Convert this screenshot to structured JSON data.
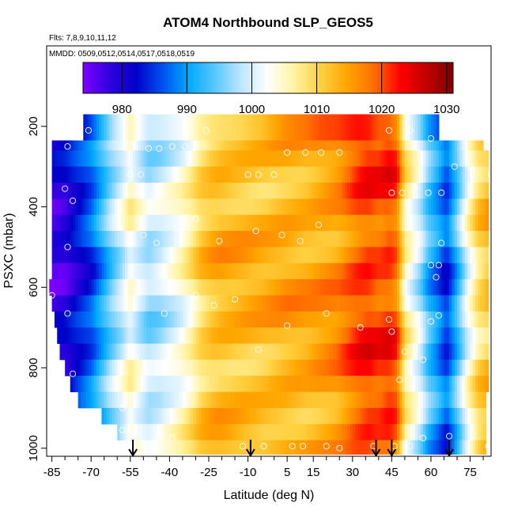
{
  "chart_data": {
    "type": "heatmap",
    "title": "ATOM4 Northbound SLP_GEOS5",
    "subtitle_flights": "Flts: 7,8,9,10,11,12",
    "subtitle_dates": "MMDD: 0509,0512,0514,0517,0518,0519",
    "xlabel": "Latitude (deg N)",
    "ylabel": "PSXC (mbar)",
    "xlim": [
      -87,
      83
    ],
    "ylim": [
      1020,
      0
    ],
    "y_reversed": true,
    "x_ticks": [
      -85,
      -70,
      -55,
      -40,
      -25,
      -10,
      5,
      15,
      30,
      45,
      60,
      75
    ],
    "x_tick_labels": [
      "-85",
      "-70",
      "-55",
      "-40",
      "-25",
      "-10",
      "5",
      "15",
      "30",
      "45",
      "60",
      "75"
    ],
    "y_ticks": [
      200,
      400,
      600,
      800,
      1000
    ],
    "y_tick_labels": [
      "200",
      "400",
      "600",
      "800",
      "1000"
    ],
    "colorbar": {
      "min": 974,
      "max": 1031,
      "ticks": [
        980,
        990,
        1000,
        1010,
        1020,
        1030
      ],
      "tick_labels": [
        "980",
        "990",
        "1000",
        "1010",
        "1020",
        "1030"
      ],
      "colors": [
        "#7f00ff",
        "#3000e0",
        "#0000c8",
        "#0050f0",
        "#00aaff",
        "#5ac8ff",
        "#bfe6ff",
        "#ffffff",
        "#fff3a0",
        "#ffd040",
        "#ffa500",
        "#ff7000",
        "#ff0000",
        "#c00000",
        "#800000"
      ]
    },
    "pressure_bands": [
      {
        "p_top": 170,
        "p_bot": 235,
        "lat_min": -73,
        "lat_max": 63
      },
      {
        "p_top": 235,
        "p_bot": 260,
        "lat_min": -85,
        "lat_max": 80
      },
      {
        "p_top": 260,
        "p_bot": 300,
        "lat_min": -85,
        "lat_max": 82
      },
      {
        "p_top": 300,
        "p_bot": 340,
        "lat_min": -85,
        "lat_max": 82
      },
      {
        "p_top": 340,
        "p_bot": 380,
        "lat_min": -85,
        "lat_max": 82
      },
      {
        "p_top": 380,
        "p_bot": 420,
        "lat_min": -85,
        "lat_max": 82
      },
      {
        "p_top": 420,
        "p_bot": 460,
        "lat_min": -85,
        "lat_max": 82
      },
      {
        "p_top": 460,
        "p_bot": 500,
        "lat_min": -85,
        "lat_max": 82
      },
      {
        "p_top": 500,
        "p_bot": 540,
        "lat_min": -85,
        "lat_max": 82
      },
      {
        "p_top": 540,
        "p_bot": 580,
        "lat_min": -85,
        "lat_max": 82
      },
      {
        "p_top": 580,
        "p_bot": 620,
        "lat_min": -86,
        "lat_max": 82
      },
      {
        "p_top": 620,
        "p_bot": 660,
        "lat_min": -85,
        "lat_max": 82
      },
      {
        "p_top": 660,
        "p_bot": 700,
        "lat_min": -84,
        "lat_max": 82
      },
      {
        "p_top": 700,
        "p_bot": 740,
        "lat_min": -83,
        "lat_max": 82
      },
      {
        "p_top": 740,
        "p_bot": 780,
        "lat_min": -82,
        "lat_max": 82
      },
      {
        "p_top": 780,
        "p_bot": 820,
        "lat_min": -80,
        "lat_max": 82
      },
      {
        "p_top": 820,
        "p_bot": 860,
        "lat_min": -78,
        "lat_max": 82
      },
      {
        "p_top": 860,
        "p_bot": 900,
        "lat_min": -75,
        "lat_max": 81
      },
      {
        "p_top": 900,
        "p_bot": 940,
        "lat_min": -66,
        "lat_max": 81
      },
      {
        "p_top": 940,
        "p_bot": 980,
        "lat_min": -60,
        "lat_max": 81
      },
      {
        "p_top": 980,
        "p_bot": 1015,
        "lat_min": -53,
        "lat_max": 81
      }
    ],
    "slp_profile_lat": [
      -87,
      -80,
      -76,
      -70,
      -66,
      -62,
      -58,
      -55,
      -52,
      -48,
      -44,
      -40,
      -36,
      -32,
      -28,
      -24,
      -20,
      -12,
      -4,
      4,
      12,
      18,
      24,
      28,
      32,
      36,
      40,
      44,
      47,
      50,
      53,
      56,
      59,
      62,
      66,
      70,
      74,
      78,
      82
    ],
    "slp_profile_value": [
      978,
      979,
      982,
      986,
      991,
      996,
      1000,
      1004,
      1001,
      998,
      999,
      1001,
      1003,
      1006,
      1010,
      1012,
      1013,
      1013,
      1013,
      1014,
      1014,
      1015,
      1016,
      1018,
      1020,
      1021,
      1020,
      1021,
      1019,
      1007,
      1003,
      999,
      993,
      990,
      985,
      993,
      1002,
      1009,
      1012
    ],
    "arrow_latitudes": [
      -54,
      -9,
      39,
      45,
      67
    ],
    "flight_markers": [
      [
        -85,
        215
      ],
      [
        -79,
        250
      ],
      [
        -71,
        210
      ],
      [
        -48,
        255
      ],
      [
        -44,
        255
      ],
      [
        -39,
        250
      ],
      [
        -34,
        250
      ],
      [
        -26,
        210
      ],
      [
        -10,
        320
      ],
      [
        -6,
        320
      ],
      [
        0,
        320
      ],
      [
        5,
        265
      ],
      [
        12,
        265
      ],
      [
        18,
        265
      ],
      [
        25,
        265
      ],
      [
        44,
        210
      ],
      [
        52,
        210
      ],
      [
        60,
        230
      ],
      [
        67,
        215
      ],
      [
        75,
        215
      ],
      [
        45,
        365
      ],
      [
        49,
        365
      ],
      [
        54,
        355
      ],
      [
        59,
        365
      ],
      [
        64,
        365
      ],
      [
        69,
        300
      ],
      [
        75,
        300
      ],
      [
        83,
        320
      ],
      [
        -80,
        355
      ],
      [
        -77,
        385
      ],
      [
        -55,
        320
      ],
      [
        -51,
        320
      ],
      [
        -50,
        470
      ],
      [
        -45,
        490
      ],
      [
        -37,
        450
      ],
      [
        -30,
        430
      ],
      [
        -21,
        485
      ],
      [
        -7,
        460
      ],
      [
        3,
        470
      ],
      [
        10,
        485
      ],
      [
        17,
        445
      ],
      [
        -79,
        500
      ],
      [
        -85,
        620
      ],
      [
        -79,
        665
      ],
      [
        -42,
        665
      ],
      [
        -30,
        620
      ],
      [
        -23,
        645
      ],
      [
        -15,
        630
      ],
      [
        5,
        695
      ],
      [
        20,
        665
      ],
      [
        33,
        700
      ],
      [
        44,
        680
      ],
      [
        45,
        710
      ],
      [
        48,
        830
      ],
      [
        50,
        760
      ],
      [
        57,
        780
      ],
      [
        60,
        685
      ],
      [
        63,
        670
      ],
      [
        63,
        545
      ],
      [
        60,
        545
      ],
      [
        64,
        490
      ],
      [
        62,
        575
      ],
      [
        -77,
        815
      ],
      [
        -53,
        775
      ],
      [
        -33,
        845
      ],
      [
        -6,
        755
      ],
      [
        -58,
        900
      ],
      [
        -58,
        955
      ],
      [
        -39,
        975
      ],
      [
        -12,
        995
      ],
      [
        -4,
        995
      ],
      [
        7,
        995
      ],
      [
        11,
        995
      ],
      [
        20,
        995
      ],
      [
        25,
        1000
      ],
      [
        38,
        995
      ],
      [
        46,
        995
      ],
      [
        52,
        995
      ],
      [
        57,
        975
      ],
      [
        67,
        970
      ],
      [
        82,
        995
      ]
    ]
  }
}
